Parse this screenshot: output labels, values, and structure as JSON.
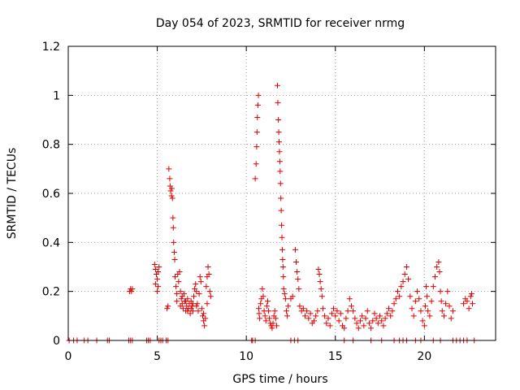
{
  "chart_data": {
    "type": "scatter",
    "title": "Day 054 of 2023, SRMTID for receiver nrmg",
    "xlabel": "GPS time / hours",
    "ylabel": "SRMTID / TECUs",
    "xlim": [
      0,
      24
    ],
    "ylim": [
      0,
      1.2
    ],
    "x_ticks": [
      0,
      5,
      10,
      15,
      20
    ],
    "x_tick_labels": [
      "0",
      "5",
      "10",
      "15",
      "20"
    ],
    "y_ticks": [
      0,
      0.2,
      0.4,
      0.6,
      0.8,
      1.0,
      1.2
    ],
    "y_tick_labels": [
      "0",
      "0.2",
      "0.4",
      "0.6",
      "0.8",
      "1",
      "1.2"
    ],
    "grid": true,
    "marker": "plus",
    "color": "#e00000",
    "series": [
      {
        "name": "SRMTID",
        "points": [
          [
            0.05,
            0
          ],
          [
            0.3,
            0
          ],
          [
            0.5,
            0
          ],
          [
            0.9,
            0
          ],
          [
            1.1,
            0
          ],
          [
            1.6,
            0
          ],
          [
            2.2,
            0
          ],
          [
            2.3,
            0
          ],
          [
            3.4,
            0
          ],
          [
            3.5,
            0
          ],
          [
            3.6,
            0
          ],
          [
            4.4,
            0
          ],
          [
            4.5,
            0
          ],
          [
            4.6,
            0
          ],
          [
            5.1,
            0
          ],
          [
            5.2,
            0
          ],
          [
            5.3,
            0
          ],
          [
            5.5,
            0
          ],
          [
            5.6,
            0
          ],
          [
            3.45,
            0.2
          ],
          [
            3.5,
            0.21
          ],
          [
            3.55,
            0.2
          ],
          [
            3.6,
            0.21
          ],
          [
            4.85,
            0.31
          ],
          [
            4.9,
            0.29
          ],
          [
            4.95,
            0.27
          ],
          [
            5.0,
            0.25
          ],
          [
            5.05,
            0.22
          ],
          [
            5.1,
            0.3
          ],
          [
            5.0,
            0.2
          ],
          [
            4.9,
            0.23
          ],
          [
            5.05,
            0.28
          ],
          [
            5.55,
            0.13
          ],
          [
            5.6,
            0.14
          ],
          [
            5.65,
            0.7
          ],
          [
            5.7,
            0.66
          ],
          [
            5.72,
            0.63
          ],
          [
            5.75,
            0.61
          ],
          [
            5.8,
            0.59
          ],
          [
            5.82,
            0.62
          ],
          [
            5.85,
            0.58
          ],
          [
            5.88,
            0.5
          ],
          [
            5.9,
            0.46
          ],
          [
            5.92,
            0.4
          ],
          [
            5.95,
            0.36
          ],
          [
            5.98,
            0.33
          ],
          [
            6.0,
            0.26
          ],
          [
            6.05,
            0.22
          ],
          [
            6.1,
            0.19
          ],
          [
            6.15,
            0.27
          ],
          [
            6.2,
            0.24
          ],
          [
            6.25,
            0.28
          ],
          [
            6.3,
            0.2
          ],
          [
            6.35,
            0.17
          ],
          [
            6.4,
            0.15
          ],
          [
            6.45,
            0.13
          ],
          [
            6.5,
            0.19
          ],
          [
            6.55,
            0.16
          ],
          [
            6.6,
            0.12
          ],
          [
            6.65,
            0.14
          ],
          [
            6.7,
            0.17
          ],
          [
            6.75,
            0.13
          ],
          [
            6.8,
            0.15
          ],
          [
            6.85,
            0.11
          ],
          [
            6.9,
            0.16
          ],
          [
            6.95,
            0.14
          ],
          [
            7.0,
            0.12
          ],
          [
            7.05,
            0.18
          ],
          [
            7.1,
            0.21
          ],
          [
            7.15,
            0.23
          ],
          [
            7.2,
            0.2
          ],
          [
            7.25,
            0.15
          ],
          [
            7.3,
            0.12
          ],
          [
            7.35,
            0.19
          ],
          [
            7.4,
            0.26
          ],
          [
            7.45,
            0.24
          ],
          [
            7.5,
            0.13
          ],
          [
            7.55,
            0.1
          ],
          [
            7.6,
            0.08
          ],
          [
            7.65,
            0.06
          ],
          [
            7.7,
            0.09
          ],
          [
            7.75,
            0.22
          ],
          [
            7.8,
            0.26
          ],
          [
            7.85,
            0.3
          ],
          [
            7.9,
            0.27
          ],
          [
            7.95,
            0.2
          ],
          [
            8.0,
            0.18
          ],
          [
            6.1,
            0.16
          ],
          [
            6.3,
            0.14
          ],
          [
            6.6,
            0.16
          ],
          [
            6.9,
            0.13
          ],
          [
            7.2,
            0.14
          ],
          [
            7.6,
            0.11
          ],
          [
            7.0,
            0.15
          ],
          [
            6.4,
            0.18
          ],
          [
            6.7,
            0.12
          ],
          [
            7.8,
            0.15
          ],
          [
            10.3,
            0
          ],
          [
            10.35,
            0
          ],
          [
            10.5,
            0
          ],
          [
            10.5,
            0.66
          ],
          [
            10.55,
            0.72
          ],
          [
            10.58,
            0.79
          ],
          [
            10.6,
            0.85
          ],
          [
            10.62,
            0.91
          ],
          [
            10.65,
            0.96
          ],
          [
            10.68,
            1.0
          ],
          [
            10.7,
            0.13
          ],
          [
            10.72,
            0.11
          ],
          [
            10.75,
            0.09
          ],
          [
            10.8,
            0.15
          ],
          [
            10.85,
            0.17
          ],
          [
            10.9,
            0.21
          ],
          [
            10.95,
            0.18
          ],
          [
            11.0,
            0.12
          ],
          [
            11.05,
            0.1
          ],
          [
            11.1,
            0.08
          ],
          [
            11.15,
            0.14
          ],
          [
            11.2,
            0.16
          ],
          [
            11.25,
            0.12
          ],
          [
            11.3,
            0.09
          ],
          [
            11.35,
            0.07
          ],
          [
            11.4,
            0.06
          ],
          [
            11.45,
            0.05
          ],
          [
            11.5,
            0.07
          ],
          [
            11.55,
            0.1
          ],
          [
            11.6,
            0.12
          ],
          [
            11.65,
            0.09
          ],
          [
            11.7,
            0.06
          ],
          [
            11.75,
            1.04
          ],
          [
            11.77,
            0.97
          ],
          [
            11.8,
            0.9
          ],
          [
            11.82,
            0.85
          ],
          [
            11.84,
            0.81
          ],
          [
            11.86,
            0.77
          ],
          [
            11.88,
            0.73
          ],
          [
            11.9,
            0.69
          ],
          [
            11.92,
            0.64
          ],
          [
            11.94,
            0.58
          ],
          [
            11.96,
            0.53
          ],
          [
            11.98,
            0.47
          ],
          [
            12.0,
            0.42
          ],
          [
            12.02,
            0.37
          ],
          [
            12.04,
            0.33
          ],
          [
            12.06,
            0.3
          ],
          [
            12.08,
            0.26
          ],
          [
            12.1,
            0.21
          ],
          [
            12.15,
            0.19
          ],
          [
            12.2,
            0.17
          ],
          [
            12.25,
            0.12
          ],
          [
            12.3,
            0.1
          ],
          [
            12.35,
            0.14
          ],
          [
            12.5,
            0
          ],
          [
            12.7,
            0
          ],
          [
            12.9,
            0
          ],
          [
            12.5,
            0.17
          ],
          [
            12.6,
            0.18
          ],
          [
            12.75,
            0.37
          ],
          [
            12.8,
            0.32
          ],
          [
            12.85,
            0.28
          ],
          [
            12.9,
            0.25
          ],
          [
            12.95,
            0.21
          ],
          [
            13.0,
            0.14
          ],
          [
            13.1,
            0.12
          ],
          [
            13.2,
            0.13
          ],
          [
            13.3,
            0.1
          ],
          [
            13.4,
            0.12
          ],
          [
            13.5,
            0.09
          ],
          [
            13.6,
            0.11
          ],
          [
            13.7,
            0.07
          ],
          [
            13.8,
            0.08
          ],
          [
            13.9,
            0.1
          ],
          [
            14.0,
            0.12
          ],
          [
            14.05,
            0.29
          ],
          [
            14.1,
            0.27
          ],
          [
            14.15,
            0.24
          ],
          [
            14.2,
            0.21
          ],
          [
            14.25,
            0.18
          ],
          [
            14.3,
            0.13
          ],
          [
            14.4,
            0.1
          ],
          [
            14.5,
            0.07
          ],
          [
            14.6,
            0.09
          ],
          [
            14.7,
            0.06
          ],
          [
            14.8,
            0.11
          ],
          [
            14.9,
            0.13
          ],
          [
            15.0,
            0.1
          ],
          [
            15.1,
            0.12
          ],
          [
            15.2,
            0.08
          ],
          [
            15.3,
            0.11
          ],
          [
            15.4,
            0.06
          ],
          [
            15.5,
            0.05
          ],
          [
            15.6,
            0.09
          ],
          [
            15.7,
            0.12
          ],
          [
            15.8,
            0.17
          ],
          [
            15.9,
            0.14
          ],
          [
            16.0,
            0.12
          ],
          [
            16.1,
            0.09
          ],
          [
            16.2,
            0.07
          ],
          [
            16.3,
            0.05
          ],
          [
            16.4,
            0.08
          ],
          [
            16.5,
            0.1
          ],
          [
            16.6,
            0.06
          ],
          [
            16.7,
            0.09
          ],
          [
            16.8,
            0.12
          ],
          [
            16.9,
            0.07
          ],
          [
            17.0,
            0.05
          ],
          [
            17.1,
            0.08
          ],
          [
            17.2,
            0.11
          ],
          [
            17.3,
            0.09
          ],
          [
            17.4,
            0.07
          ],
          [
            17.5,
            0.1
          ],
          [
            17.6,
            0.08
          ],
          [
            17.7,
            0.06
          ],
          [
            17.8,
            0.09
          ],
          [
            17.9,
            0.11
          ],
          [
            18.0,
            0.13
          ],
          [
            18.1,
            0.1
          ],
          [
            18.2,
            0.12
          ],
          [
            15.5,
            0
          ],
          [
            16.0,
            0
          ],
          [
            17.0,
            0
          ],
          [
            17.6,
            0
          ],
          [
            18.3,
            0
          ],
          [
            18.6,
            0
          ],
          [
            18.8,
            0
          ],
          [
            19.0,
            0
          ],
          [
            19.5,
            0
          ],
          [
            19.8,
            0
          ],
          [
            20.5,
            0
          ],
          [
            20.9,
            0
          ],
          [
            21.6,
            0
          ],
          [
            21.8,
            0
          ],
          [
            22.0,
            0
          ],
          [
            22.2,
            0
          ],
          [
            22.4,
            0
          ],
          [
            22.8,
            0
          ],
          [
            18.3,
            0.15
          ],
          [
            18.4,
            0.17
          ],
          [
            18.5,
            0.2
          ],
          [
            18.6,
            0.18
          ],
          [
            18.7,
            0.22
          ],
          [
            18.8,
            0.24
          ],
          [
            18.9,
            0.27
          ],
          [
            19.0,
            0.3
          ],
          [
            19.1,
            0.25
          ],
          [
            19.2,
            0.18
          ],
          [
            19.3,
            0.13
          ],
          [
            19.4,
            0.1
          ],
          [
            19.5,
            0.16
          ],
          [
            19.6,
            0.2
          ],
          [
            19.7,
            0.17
          ],
          [
            19.8,
            0.12
          ],
          [
            19.9,
            0.08
          ],
          [
            20.0,
            0.06
          ],
          [
            20.05,
            0.14
          ],
          [
            20.1,
            0.22
          ],
          [
            20.15,
            0.18
          ],
          [
            20.2,
            0.12
          ],
          [
            20.3,
            0.1
          ],
          [
            20.4,
            0.16
          ],
          [
            20.5,
            0.22
          ],
          [
            20.6,
            0.26
          ],
          [
            20.7,
            0.3
          ],
          [
            20.8,
            0.32
          ],
          [
            20.85,
            0.28
          ],
          [
            20.9,
            0.2
          ],
          [
            20.95,
            0.16
          ],
          [
            21.0,
            0.12
          ],
          [
            21.1,
            0.1
          ],
          [
            21.2,
            0.15
          ],
          [
            21.3,
            0.2
          ],
          [
            21.4,
            0.14
          ],
          [
            21.5,
            0.09
          ],
          [
            21.6,
            0.12
          ],
          [
            22.2,
            0.15
          ],
          [
            22.3,
            0.17
          ],
          [
            22.4,
            0.16
          ],
          [
            22.5,
            0.13
          ],
          [
            22.6,
            0.18
          ],
          [
            22.65,
            0.19
          ],
          [
            22.7,
            0.15
          ]
        ]
      }
    ]
  }
}
